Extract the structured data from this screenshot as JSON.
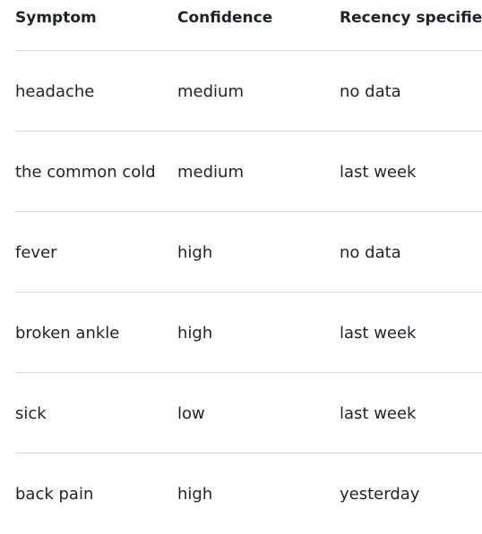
{
  "table": {
    "headers": [
      "Symptom",
      "Confidence",
      "Recency specified"
    ],
    "rows": [
      {
        "symptom": "headache",
        "confidence": "medium",
        "recency": "no data"
      },
      {
        "symptom": "the common cold",
        "confidence": "medium",
        "recency": "last week"
      },
      {
        "symptom": "fever",
        "confidence": "high",
        "recency": "no data"
      },
      {
        "symptom": "broken ankle",
        "confidence": "high",
        "recency": "last week"
      },
      {
        "symptom": "sick",
        "confidence": "low",
        "recency": "last week"
      },
      {
        "symptom": "back pain",
        "confidence": "high",
        "recency": "yesterday"
      }
    ]
  },
  "colors": {
    "text": "#1f2328",
    "divider": "#d8dadd",
    "background": "#ffffff"
  }
}
